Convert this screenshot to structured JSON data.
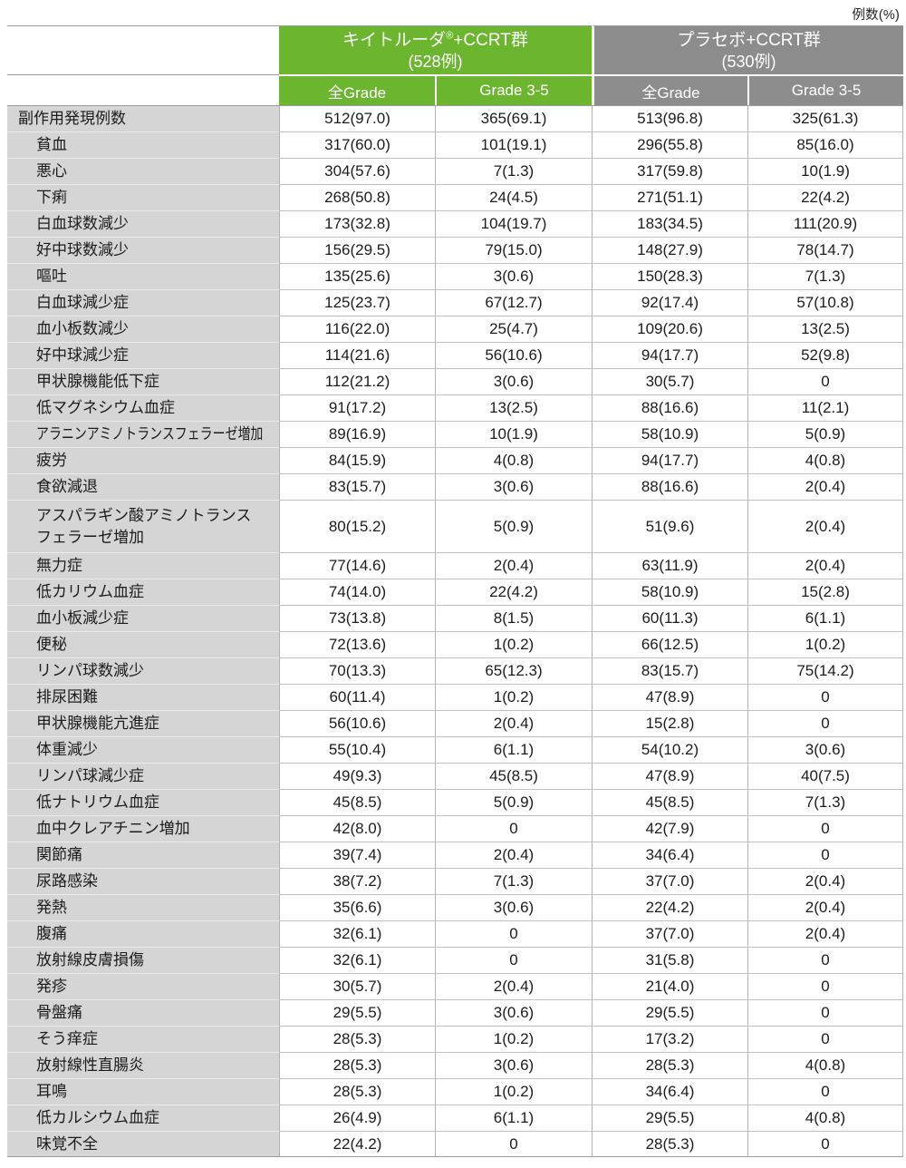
{
  "unit_label": "例数(%)",
  "colors": {
    "keytruda_green": "#6cb52f",
    "placebo_gray": "#8c8c8c",
    "label_bg": "#d5d5d5",
    "grid_border": "#b2b2b2",
    "strong_border": "#9b9b9b"
  },
  "groups": [
    {
      "name_main": "キイトルーダ",
      "name_sup": "®",
      "name_rest": "+CCRT群",
      "n": "(528例)",
      "subcols": [
        "全Grade",
        "Grade 3-5"
      ]
    },
    {
      "name_main": "プラセボ",
      "name_sup": "",
      "name_rest": "+CCRT群",
      "n": "(530例)",
      "subcols": [
        "全Grade",
        "Grade 3-5"
      ]
    }
  ],
  "rows": [
    {
      "label": "副作用発現例数",
      "indent": 0,
      "values": [
        "512(97.0)",
        "365(69.1)",
        "513(96.8)",
        "325(61.3)"
      ]
    },
    {
      "label": "貧血",
      "indent": 1,
      "values": [
        "317(60.0)",
        "101(19.1)",
        "296(55.8)",
        "85(16.0)"
      ]
    },
    {
      "label": "悪心",
      "indent": 1,
      "values": [
        "304(57.6)",
        "7(1.3)",
        "317(59.8)",
        "10(1.9)"
      ]
    },
    {
      "label": "下痢",
      "indent": 1,
      "values": [
        "268(50.8)",
        "24(4.5)",
        "271(51.1)",
        "22(4.2)"
      ]
    },
    {
      "label": "白血球数減少",
      "indent": 1,
      "values": [
        "173(32.8)",
        "104(19.7)",
        "183(34.5)",
        "111(20.9)"
      ]
    },
    {
      "label": "好中球数減少",
      "indent": 1,
      "values": [
        "156(29.5)",
        "79(15.0)",
        "148(27.9)",
        "78(14.7)"
      ]
    },
    {
      "label": "嘔吐",
      "indent": 1,
      "values": [
        "135(25.6)",
        "3(0.6)",
        "150(28.3)",
        "7(1.3)"
      ]
    },
    {
      "label": "白血球減少症",
      "indent": 1,
      "values": [
        "125(23.7)",
        "67(12.7)",
        "92(17.4)",
        "57(10.8)"
      ]
    },
    {
      "label": "血小板数減少",
      "indent": 1,
      "values": [
        "116(22.0)",
        "25(4.7)",
        "109(20.6)",
        "13(2.5)"
      ]
    },
    {
      "label": "好中球減少症",
      "indent": 1,
      "values": [
        "114(21.6)",
        "56(10.6)",
        "94(17.7)",
        "52(9.8)"
      ]
    },
    {
      "label": "甲状腺機能低下症",
      "indent": 1,
      "values": [
        "112(21.2)",
        "3(0.6)",
        "30(5.7)",
        "0"
      ]
    },
    {
      "label": "低マグネシウム血症",
      "indent": 1,
      "values": [
        "91(17.2)",
        "13(2.5)",
        "88(16.6)",
        "11(2.1)"
      ]
    },
    {
      "label": "アラニンアミノトランスフェラーゼ増加",
      "indent": 1,
      "values": [
        "89(16.9)",
        "10(1.9)",
        "58(10.9)",
        "5(0.9)"
      ]
    },
    {
      "label": "疲労",
      "indent": 1,
      "values": [
        "84(15.9)",
        "4(0.8)",
        "94(17.7)",
        "4(0.8)"
      ]
    },
    {
      "label": "食欲減退",
      "indent": 1,
      "values": [
        "83(15.7)",
        "3(0.6)",
        "88(16.6)",
        "2(0.4)"
      ]
    },
    {
      "label": "アスパラギン酸アミノトランス\nフェラーゼ増加",
      "indent": 1,
      "values": [
        "80(15.2)",
        "5(0.9)",
        "51(9.6)",
        "2(0.4)"
      ]
    },
    {
      "label": "無力症",
      "indent": 1,
      "values": [
        "77(14.6)",
        "2(0.4)",
        "63(11.9)",
        "2(0.4)"
      ]
    },
    {
      "label": "低カリウム血症",
      "indent": 1,
      "values": [
        "74(14.0)",
        "22(4.2)",
        "58(10.9)",
        "15(2.8)"
      ]
    },
    {
      "label": "血小板減少症",
      "indent": 1,
      "values": [
        "73(13.8)",
        "8(1.5)",
        "60(11.3)",
        "6(1.1)"
      ]
    },
    {
      "label": "便秘",
      "indent": 1,
      "values": [
        "72(13.6)",
        "1(0.2)",
        "66(12.5)",
        "1(0.2)"
      ]
    },
    {
      "label": "リンパ球数減少",
      "indent": 1,
      "values": [
        "70(13.3)",
        "65(12.3)",
        "83(15.7)",
        "75(14.2)"
      ]
    },
    {
      "label": "排尿困難",
      "indent": 1,
      "values": [
        "60(11.4)",
        "1(0.2)",
        "47(8.9)",
        "0"
      ]
    },
    {
      "label": "甲状腺機能亢進症",
      "indent": 1,
      "values": [
        "56(10.6)",
        "2(0.4)",
        "15(2.8)",
        "0"
      ]
    },
    {
      "label": "体重減少",
      "indent": 1,
      "values": [
        "55(10.4)",
        "6(1.1)",
        "54(10.2)",
        "3(0.6)"
      ]
    },
    {
      "label": "リンパ球減少症",
      "indent": 1,
      "values": [
        "49(9.3)",
        "45(8.5)",
        "47(8.9)",
        "40(7.5)"
      ]
    },
    {
      "label": "低ナトリウム血症",
      "indent": 1,
      "values": [
        "45(8.5)",
        "5(0.9)",
        "45(8.5)",
        "7(1.3)"
      ]
    },
    {
      "label": "血中クレアチニン増加",
      "indent": 1,
      "values": [
        "42(8.0)",
        "0",
        "42(7.9)",
        "0"
      ]
    },
    {
      "label": "関節痛",
      "indent": 1,
      "values": [
        "39(7.4)",
        "2(0.4)",
        "34(6.4)",
        "0"
      ]
    },
    {
      "label": "尿路感染",
      "indent": 1,
      "values": [
        "38(7.2)",
        "7(1.3)",
        "37(7.0)",
        "2(0.4)"
      ]
    },
    {
      "label": "発熱",
      "indent": 1,
      "values": [
        "35(6.6)",
        "3(0.6)",
        "22(4.2)",
        "2(0.4)"
      ]
    },
    {
      "label": "腹痛",
      "indent": 1,
      "values": [
        "32(6.1)",
        "0",
        "37(7.0)",
        "2(0.4)"
      ]
    },
    {
      "label": "放射線皮膚損傷",
      "indent": 1,
      "values": [
        "32(6.1)",
        "0",
        "31(5.8)",
        "0"
      ]
    },
    {
      "label": "発疹",
      "indent": 1,
      "values": [
        "30(5.7)",
        "2(0.4)",
        "21(4.0)",
        "0"
      ]
    },
    {
      "label": "骨盤痛",
      "indent": 1,
      "values": [
        "29(5.5)",
        "3(0.6)",
        "29(5.5)",
        "0"
      ]
    },
    {
      "label": "そう痒症",
      "indent": 1,
      "values": [
        "28(5.3)",
        "1(0.2)",
        "17(3.2)",
        "0"
      ]
    },
    {
      "label": "放射線性直腸炎",
      "indent": 1,
      "values": [
        "28(5.3)",
        "3(0.6)",
        "28(5.3)",
        "4(0.8)"
      ]
    },
    {
      "label": "耳鳴",
      "indent": 1,
      "values": [
        "28(5.3)",
        "1(0.2)",
        "34(6.4)",
        "0"
      ]
    },
    {
      "label": "低カルシウム血症",
      "indent": 1,
      "values": [
        "26(4.9)",
        "6(1.1)",
        "29(5.5)",
        "4(0.8)"
      ]
    },
    {
      "label": "味覚不全",
      "indent": 1,
      "values": [
        "22(4.2)",
        "0",
        "28(5.3)",
        "0"
      ]
    }
  ]
}
